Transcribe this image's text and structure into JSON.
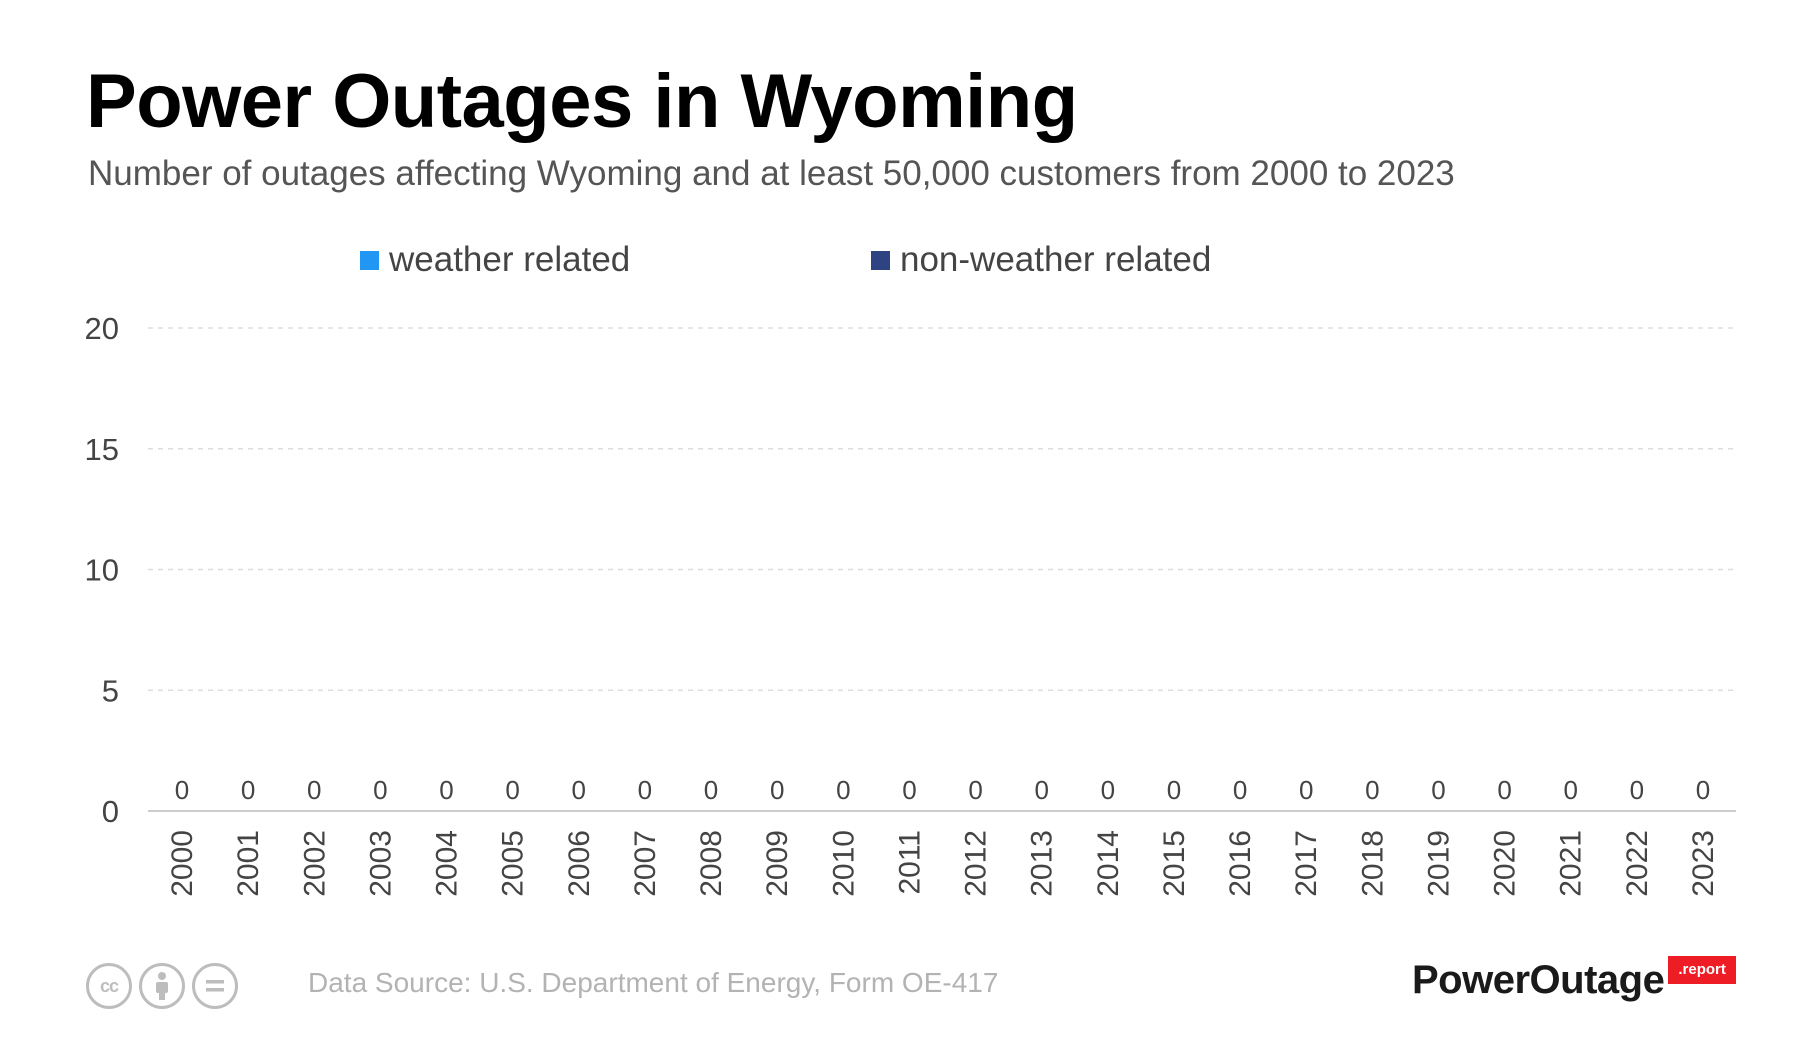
{
  "title": "Power Outages in Wyoming",
  "subtitle": "Number of outages affecting Wyoming and at least 50,000 customers from 2000 to 2023",
  "legend": [
    {
      "label": "weather related",
      "color": "#2196f3"
    },
    {
      "label": "non-weather related",
      "color": "#2e4482"
    }
  ],
  "footer": {
    "data_source": "Data Source: U.S. Department of Energy, Form OE-417",
    "cc_icons": [
      "cc-icon",
      "by-attribution-icon",
      "nd-equals-icon"
    ],
    "cc_label": "cc",
    "brand_name": "PowerOutage",
    "brand_badge": ".report",
    "brand_badge_color": "#ee1c25"
  },
  "chart_data": {
    "type": "bar",
    "stacked": true,
    "categories": [
      "2000",
      "2001",
      "2002",
      "2003",
      "2004",
      "2005",
      "2006",
      "2007",
      "2008",
      "2009",
      "2010",
      "2011",
      "2012",
      "2013",
      "2014",
      "2015",
      "2016",
      "2017",
      "2018",
      "2019",
      "2020",
      "2021",
      "2022",
      "2023"
    ],
    "series": [
      {
        "name": "weather related",
        "color": "#2196f3",
        "values": [
          0,
          0,
          0,
          0,
          0,
          0,
          0,
          0,
          0,
          0,
          0,
          0,
          0,
          0,
          0,
          0,
          0,
          0,
          0,
          0,
          0,
          0,
          0,
          0
        ]
      },
      {
        "name": "non-weather related",
        "color": "#2e4482",
        "values": [
          0,
          0,
          0,
          0,
          0,
          0,
          0,
          0,
          0,
          0,
          0,
          0,
          0,
          0,
          0,
          0,
          0,
          0,
          0,
          0,
          0,
          0,
          0,
          0
        ]
      }
    ],
    "totals": [
      0,
      0,
      0,
      0,
      0,
      0,
      0,
      0,
      0,
      0,
      0,
      0,
      0,
      0,
      0,
      0,
      0,
      0,
      0,
      0,
      0,
      0,
      0,
      0
    ],
    "yticks": [
      0,
      5,
      10,
      15,
      20
    ],
    "ylim": [
      0,
      20
    ],
    "grid": true,
    "legend_position": "top",
    "xtick_rotation": -90
  }
}
